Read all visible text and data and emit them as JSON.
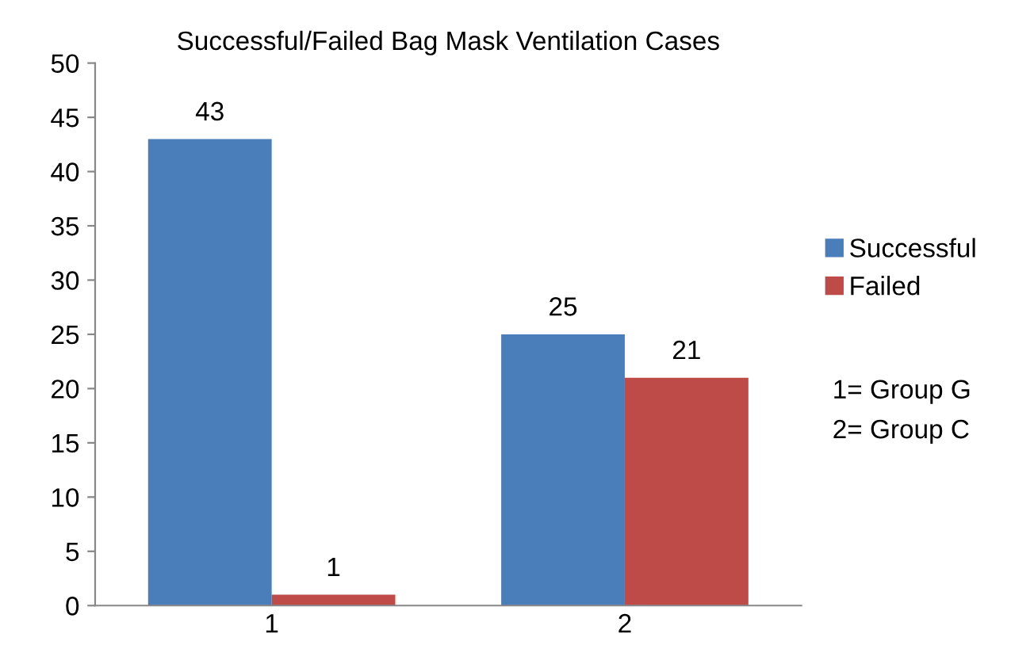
{
  "chart_data": {
    "type": "bar",
    "title": "Successful/Failed Bag Mask Ventilation Cases",
    "categories": [
      "1",
      "2"
    ],
    "series": [
      {
        "name": "Successful",
        "color": "#4a7ebb",
        "values": [
          43,
          25
        ]
      },
      {
        "name": "Failed",
        "color": "#be4b48",
        "values": [
          1,
          21
        ]
      }
    ],
    "ylim": [
      0,
      50
    ],
    "yticks": [
      0,
      5,
      10,
      15,
      20,
      25,
      30,
      35,
      40,
      45,
      50
    ],
    "data_labels": true,
    "legend": "right",
    "grid": false,
    "annotations": [
      "1= Group G",
      "2= Group C"
    ]
  }
}
